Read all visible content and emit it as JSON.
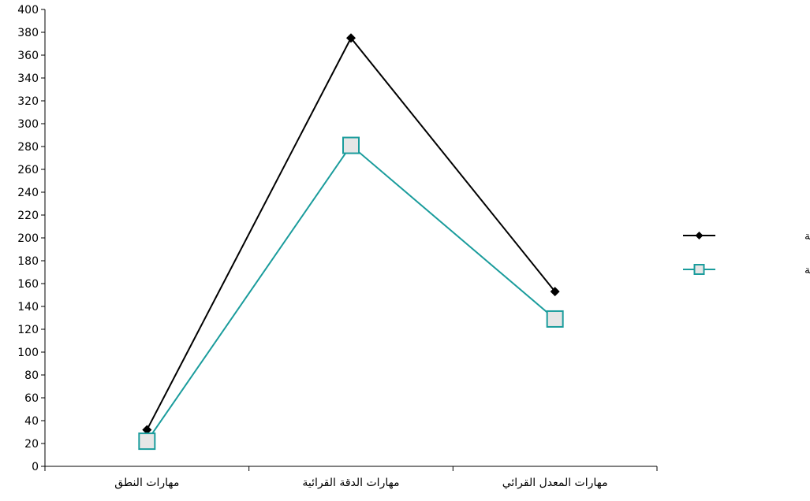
{
  "chart_data": {
    "type": "line",
    "categories": [
      "مهارات النطق",
      "مهارات الدقة القرائية",
      "مهارات المعدل القرائي"
    ],
    "series": [
      {
        "name": "مجموعة تجريبية",
        "values": [
          32,
          375,
          153
        ],
        "color": "#000000",
        "marker": "diamond"
      },
      {
        "name": "مجموعة ضابطة",
        "values": [
          22,
          281,
          129
        ],
        "color": "#1a9c9c",
        "marker": "square"
      }
    ],
    "ylim": [
      0,
      400
    ],
    "yticks": [
      0,
      20,
      40,
      60,
      80,
      100,
      120,
      140,
      160,
      180,
      200,
      220,
      240,
      260,
      280,
      300,
      320,
      340,
      360,
      380,
      400
    ],
    "grid": false,
    "legend_position": "right",
    "title": "",
    "xlabel": "",
    "ylabel": ""
  }
}
